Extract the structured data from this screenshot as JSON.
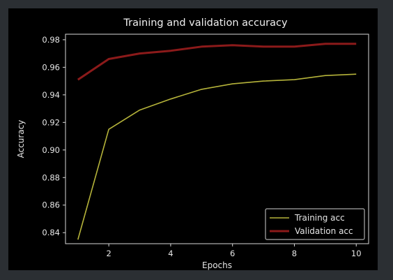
{
  "chart_data": {
    "type": "line",
    "title": "Training and validation accuracy",
    "xlabel": "Epochs",
    "ylabel": "Accuracy",
    "x": [
      1,
      2,
      3,
      4,
      5,
      6,
      7,
      8,
      9,
      10
    ],
    "xlim": [
      0.6,
      10.4
    ],
    "ylim": [
      0.832,
      0.984
    ],
    "xticks": [
      2,
      4,
      6,
      8,
      10
    ],
    "yticks": [
      0.84,
      0.86,
      0.88,
      0.9,
      0.92,
      0.94,
      0.96,
      0.98
    ],
    "ytick_labels": [
      "0.84",
      "0.86",
      "0.88",
      "0.90",
      "0.92",
      "0.94",
      "0.96",
      "0.98"
    ],
    "grid": false,
    "legend_position": "bottom-right",
    "background": "#000000",
    "series": [
      {
        "name": "Training acc",
        "color": "#b5b33a",
        "values": [
          0.835,
          0.915,
          0.929,
          0.937,
          0.944,
          0.948,
          0.95,
          0.951,
          0.954,
          0.955
        ]
      },
      {
        "name": "Validation acc",
        "color": "#8b1a1a",
        "values": [
          0.951,
          0.966,
          0.97,
          0.972,
          0.975,
          0.976,
          0.975,
          0.975,
          0.977,
          0.977
        ]
      }
    ]
  }
}
